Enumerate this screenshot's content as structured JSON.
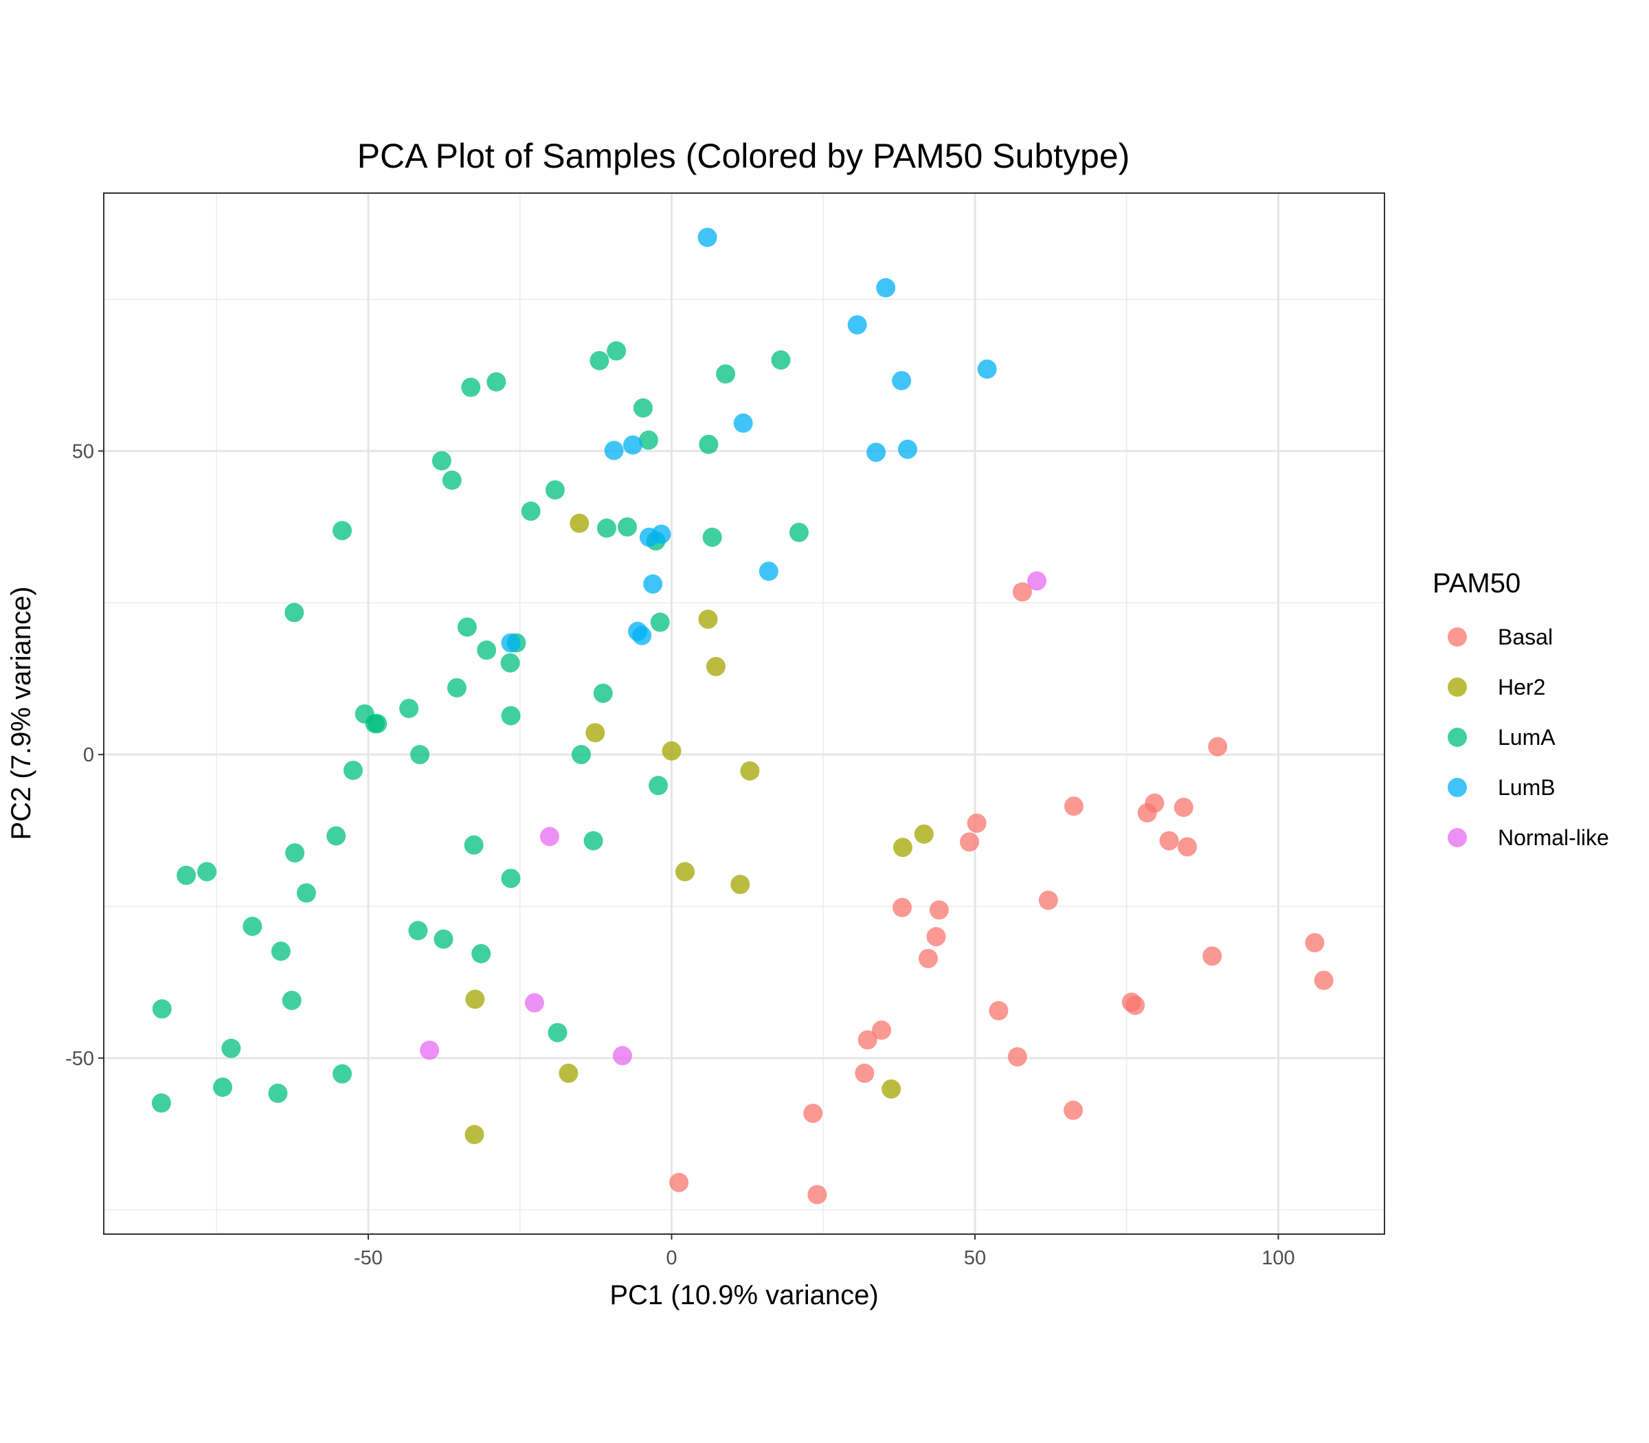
{
  "chart_data": {
    "type": "scatter",
    "title": "PCA Plot of Samples (Colored by PAM50 Subtype)",
    "xlabel": "PC1 (10.9% variance)",
    "ylabel": "PC2 (7.9% variance)",
    "xlim": [
      -93.6,
      117.5
    ],
    "ylim": [
      -79,
      92.5
    ],
    "x_ticks": [
      -50,
      0,
      50,
      100
    ],
    "y_ticks": [
      -50,
      0,
      50
    ],
    "x_tick_labels": [
      "-50",
      "0",
      "50",
      "100"
    ],
    "y_tick_labels": [
      "-50",
      "0",
      "50"
    ],
    "grid": true,
    "legend": {
      "title": "PAM50",
      "placement": "right"
    },
    "series": [
      {
        "name": "Basal",
        "color": "#F8766D",
        "points": [
          [
            57.8,
            26.8
          ],
          [
            90,
            1.3
          ],
          [
            66.3,
            -8.5
          ],
          [
            79.6,
            -8
          ],
          [
            78.4,
            -9.6
          ],
          [
            84.4,
            -8.7
          ],
          [
            50.3,
            -11.3
          ],
          [
            49.1,
            -14.4
          ],
          [
            82,
            -14.2
          ],
          [
            85,
            -15.2
          ],
          [
            62.1,
            -24
          ],
          [
            38,
            -25.2
          ],
          [
            44.1,
            -25.6
          ],
          [
            43.6,
            -30
          ],
          [
            42.3,
            -33.6
          ],
          [
            106,
            -31
          ],
          [
            89.1,
            -33.2
          ],
          [
            107.5,
            -37.2
          ],
          [
            75.8,
            -40.8
          ],
          [
            76.4,
            -41.3
          ],
          [
            53.9,
            -42.2
          ],
          [
            34.6,
            -45.4
          ],
          [
            32.3,
            -47
          ],
          [
            57,
            -49.8
          ],
          [
            31.8,
            -52.5
          ],
          [
            23.3,
            -59.1
          ],
          [
            66.2,
            -58.6
          ],
          [
            1.2,
            -70.5
          ],
          [
            24,
            -72.5
          ]
        ]
      },
      {
        "name": "Her2",
        "color": "#A3A500",
        "points": [
          [
            -15.2,
            38.1
          ],
          [
            6,
            22.3
          ],
          [
            7.3,
            14.5
          ],
          [
            -12.6,
            3.6
          ],
          [
            0,
            0.6
          ],
          [
            12.9,
            -2.7
          ],
          [
            41.6,
            -13.1
          ],
          [
            38.1,
            -15.3
          ],
          [
            2.2,
            -19.3
          ],
          [
            11.3,
            -21.4
          ],
          [
            -32.4,
            -40.3
          ],
          [
            -17,
            -52.5
          ],
          [
            36.2,
            -55.1
          ],
          [
            -32.5,
            -62.6
          ]
        ]
      },
      {
        "name": "LumA",
        "color": "#00BF7D",
        "points": [
          [
            -9.1,
            66.5
          ],
          [
            -11.9,
            64.9
          ],
          [
            8.9,
            62.7
          ],
          [
            18,
            65
          ],
          [
            -28.9,
            61.4
          ],
          [
            -33.1,
            60.5
          ],
          [
            -4.7,
            57.1
          ],
          [
            -3.8,
            51.8
          ],
          [
            6.1,
            51.1
          ],
          [
            -37.9,
            48.4
          ],
          [
            -36.2,
            45.2
          ],
          [
            -19.2,
            43.6
          ],
          [
            -23.2,
            40.1
          ],
          [
            -54.3,
            36.9
          ],
          [
            -10.7,
            37.3
          ],
          [
            -7.3,
            37.5
          ],
          [
            -2.6,
            35.2
          ],
          [
            6.7,
            35.8
          ],
          [
            21,
            36.6
          ],
          [
            -62.2,
            23.4
          ],
          [
            -33.7,
            21
          ],
          [
            -1.9,
            21.8
          ],
          [
            -25.6,
            18.4
          ],
          [
            -30.5,
            17.2
          ],
          [
            -26.6,
            15.1
          ],
          [
            -35.4,
            11
          ],
          [
            -11.3,
            10.1
          ],
          [
            -43.3,
            7.6
          ],
          [
            -50.6,
            6.7
          ],
          [
            -48.9,
            5.1
          ],
          [
            -48.5,
            5.1
          ],
          [
            -26.5,
            6.4
          ],
          [
            -52.5,
            -2.6
          ],
          [
            -41.5,
            0
          ],
          [
            -14.9,
            0
          ],
          [
            -2.2,
            -5.1
          ],
          [
            -55.3,
            -13.4
          ],
          [
            -32.6,
            -14.9
          ],
          [
            -12.9,
            -14.2
          ],
          [
            -62.1,
            -16.2
          ],
          [
            -80,
            -19.9
          ],
          [
            -76.6,
            -19.3
          ],
          [
            -26.5,
            -20.4
          ],
          [
            -60.2,
            -22.8
          ],
          [
            -69.1,
            -28.3
          ],
          [
            -41.8,
            -29
          ],
          [
            -37.6,
            -30.4
          ],
          [
            -31.4,
            -32.8
          ],
          [
            -64.4,
            -32.4
          ],
          [
            -62.6,
            -40.5
          ],
          [
            -84,
            -41.9
          ],
          [
            -18.8,
            -45.8
          ],
          [
            -72.6,
            -48.4
          ],
          [
            -54.3,
            -52.6
          ],
          [
            -74,
            -54.8
          ],
          [
            -64.9,
            -55.8
          ],
          [
            -84.1,
            -57.4
          ]
        ]
      },
      {
        "name": "LumB",
        "color": "#00B0F6",
        "points": [
          [
            5.9,
            85.2
          ],
          [
            35.3,
            76.9
          ],
          [
            30.6,
            70.8
          ],
          [
            52,
            63.5
          ],
          [
            37.9,
            61.6
          ],
          [
            11.8,
            54.6
          ],
          [
            -6.4,
            51
          ],
          [
            -9.5,
            50.1
          ],
          [
            33.7,
            49.8
          ],
          [
            38.9,
            50.3
          ],
          [
            -1.7,
            36.3
          ],
          [
            -3.7,
            35.8
          ],
          [
            16,
            30.2
          ],
          [
            -3.1,
            28.1
          ],
          [
            -5.6,
            20.3
          ],
          [
            -4.9,
            19.6
          ],
          [
            -26.5,
            18.4
          ]
        ]
      },
      {
        "name": "Normal-like",
        "color": "#E76BF3",
        "points": [
          [
            60.2,
            28.6
          ],
          [
            -20.1,
            -13.5
          ],
          [
            -22.6,
            -40.9
          ],
          [
            -8.1,
            -49.6
          ],
          [
            -39.9,
            -48.7
          ]
        ]
      }
    ]
  }
}
